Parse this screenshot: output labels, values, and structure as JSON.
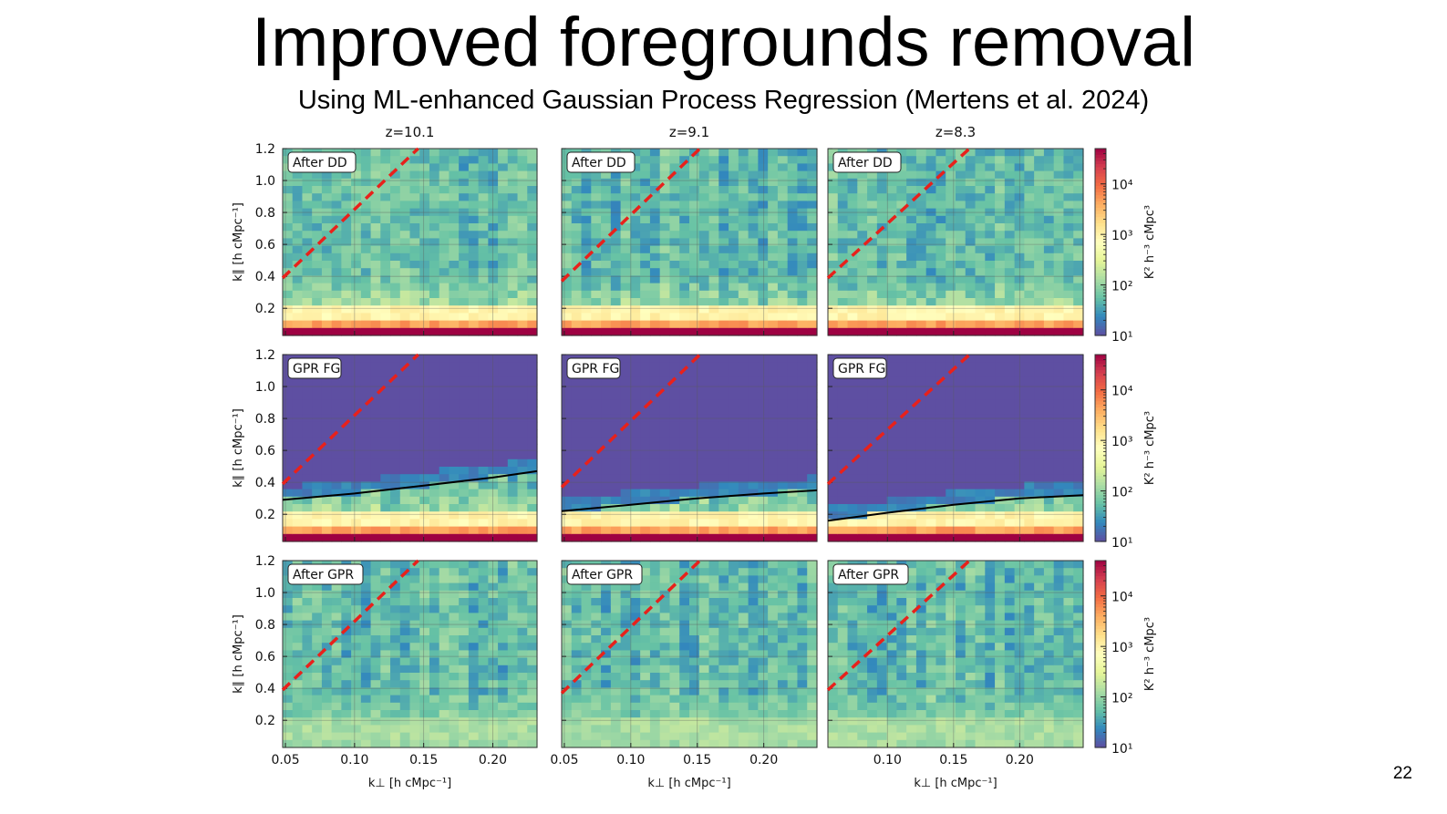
{
  "slide": {
    "title": "Improved foregrounds removal",
    "subtitle": "Using ML-enhanced Gaussian Process Regression (Mertens et al. 2024)",
    "page_number": "22"
  },
  "chart_data": {
    "type": "heatmap",
    "title": "",
    "columns": [
      {
        "label": "z=10.1",
        "xlim": [
          0.048,
          0.232
        ],
        "xticks": [
          "0.05",
          "0.10",
          "0.15",
          "0.20"
        ],
        "xtick_values": [
          0.05,
          0.1,
          0.15,
          0.2
        ]
      },
      {
        "label": "z=9.1",
        "xlim": [
          0.048,
          0.24
        ],
        "xticks": [
          "0.05",
          "0.10",
          "0.15",
          "0.20"
        ],
        "xtick_values": [
          0.05,
          0.1,
          0.15,
          0.2
        ]
      },
      {
        "label": "z=8.3",
        "xlim": [
          0.055,
          0.248
        ],
        "xticks": [
          "0.10",
          "0.15",
          "0.20"
        ],
        "xtick_values": [
          0.1,
          0.15,
          0.2
        ]
      }
    ],
    "rows": [
      {
        "label": "After DD"
      },
      {
        "label": "GPR FG"
      },
      {
        "label": "After GPR"
      }
    ],
    "xlabel": "k⊥ [h cMpc⁻¹]",
    "ylabel": "k∥ [h cMpc⁻¹]",
    "ylim": [
      0.03,
      1.2
    ],
    "yticks": [
      "0.2",
      "0.4",
      "0.6",
      "0.8",
      "1.0",
      "1.2"
    ],
    "ytick_values": [
      0.2,
      0.4,
      0.6,
      0.8,
      1.0,
      1.2
    ],
    "colorbar": {
      "label": "K² h⁻³ cMpc³",
      "scale": "log",
      "range": [
        10,
        50000
      ],
      "ticks": [
        "10¹",
        "10²",
        "10³",
        "10⁴"
      ],
      "tick_values": [
        10,
        100,
        1000,
        10000
      ],
      "colormap": "Spectral_r"
    },
    "wedge_line": {
      "style": "dashed",
      "color": "#e8211b",
      "points_by_column": [
        [
          [
            0.048,
            0.39
          ],
          [
            0.146,
            1.2
          ]
        ],
        [
          [
            0.048,
            0.37
          ],
          [
            0.152,
            1.2
          ]
        ],
        [
          [
            0.055,
            0.39
          ],
          [
            0.162,
            1.2
          ]
        ]
      ]
    },
    "gpr_fg_boundary": {
      "color": "#000000",
      "points_by_column": [
        [
          [
            0.048,
            0.29
          ],
          [
            0.1,
            0.33
          ],
          [
            0.15,
            0.38
          ],
          [
            0.2,
            0.43
          ],
          [
            0.232,
            0.47
          ]
        ],
        [
          [
            0.048,
            0.22
          ],
          [
            0.1,
            0.26
          ],
          [
            0.15,
            0.3
          ],
          [
            0.2,
            0.33
          ],
          [
            0.24,
            0.35
          ]
        ],
        [
          [
            0.055,
            0.16
          ],
          [
            0.1,
            0.21
          ],
          [
            0.15,
            0.26
          ],
          [
            0.2,
            0.3
          ],
          [
            0.248,
            0.32
          ]
        ]
      ]
    },
    "grid": true
  }
}
